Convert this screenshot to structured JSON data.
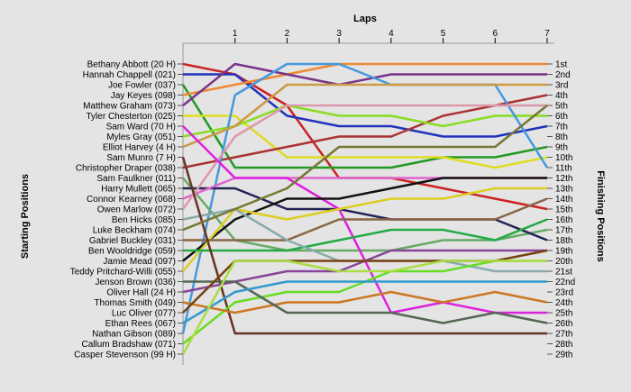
{
  "chart_data": {
    "type": "line",
    "title": "",
    "x_title": "Laps",
    "y_left_title": "Starting Positions",
    "y_right_title": "Finishing Positions",
    "x": [
      0,
      1,
      2,
      3,
      4,
      5,
      6,
      7
    ],
    "x_tick_labels": [
      "1",
      "2",
      "3",
      "4",
      "5",
      "6",
      "7"
    ],
    "xlim": [
      0,
      7
    ],
    "ylim": [
      1,
      29
    ],
    "y_inverted": true,
    "grid": false,
    "starting_positions": [
      "Bethany Abbott (20 H)",
      "Hannah Chappell (021)",
      "Joe Fowler (037)",
      "Jay Keyes (098)",
      "Matthew Graham (073)",
      "Tyler Chesterton (025)",
      "Sam Ward (70 H)",
      "Myles Gray (051)",
      "Elliot Harvey (4 H)",
      "Sam Munro (7 H)",
      "Christopher Draper (038)",
      "Sam Faulkner (011)",
      "Harry Mullett (065)",
      "Connor Kearney (068)",
      "Owen Marlow (072)",
      "Ben Hicks (085)",
      "Luke Beckham (074)",
      "Gabriel Buckley (031)",
      "Ben Wooldridge (059)",
      "Jamie Mead (097)",
      "Teddy Pritchard-Willi (055)",
      "Jenson Brown (036)",
      "Oliver Hall (24 H)",
      "Thomas Smith (049)",
      "Luc Oliver (077)",
      "Ethan Rees (067)",
      "Nathan Gibson (089)",
      "Callum Bradshaw (071)",
      "Casper Stevenson (99 H)"
    ],
    "finishing_positions": [
      "1st",
      "2nd",
      "3rd",
      "4th",
      "5th",
      "6th",
      "7th",
      "8th",
      "9th",
      "10th",
      "11th",
      "12th",
      "13th",
      "14th",
      "15th",
      "16th",
      "17th",
      "18th",
      "19th",
      "20th",
      "21st",
      "22nd",
      "23rd",
      "24th",
      "25th",
      "26th",
      "27th",
      "28th",
      "29th"
    ],
    "series": [
      {
        "color": "#cc2222",
        "values": [
          1,
          2,
          5,
          12,
          12,
          13,
          14,
          15
        ]
      },
      {
        "color": "#2233bb",
        "values": [
          2,
          2,
          6,
          7,
          7,
          8,
          8,
          7
        ]
      },
      {
        "color": "#229922",
        "values": [
          3,
          11,
          11,
          11,
          11,
          10,
          10,
          9
        ]
      },
      {
        "color": "#ee8833",
        "values": [
          4,
          3,
          2,
          1,
          1,
          1,
          1,
          1
        ]
      },
      {
        "color": "#773388",
        "values": [
          5,
          1,
          2,
          3,
          2,
          2,
          2,
          2
        ]
      },
      {
        "color": "#dddd22",
        "values": [
          6,
          6,
          10,
          10,
          10,
          10,
          11,
          10
        ]
      },
      {
        "color": "#aa3333",
        "values": [
          11,
          10,
          9,
          8,
          8,
          6,
          5,
          4
        ]
      },
      {
        "color": "#88dd22",
        "values": [
          8,
          7,
          5,
          6,
          6,
          7,
          6,
          6
        ]
      },
      {
        "color": "#4499dd",
        "values": [
          27,
          4,
          1,
          1,
          3,
          3,
          3,
          11
        ]
      },
      {
        "color": "#cc9944",
        "values": [
          9,
          7,
          3,
          3,
          3,
          3,
          3,
          3
        ]
      },
      {
        "color": "#66aa66",
        "values": [
          12,
          18,
          19,
          19,
          19,
          18,
          18,
          17
        ]
      },
      {
        "color": "#222255",
        "values": [
          13,
          13,
          15,
          15,
          16,
          16,
          16,
          18
        ]
      },
      {
        "color": "#dd66cc",
        "values": [
          14,
          12,
          12,
          12,
          12,
          12,
          12,
          12
        ]
      },
      {
        "color": "#dd99aa",
        "values": [
          15,
          8,
          5,
          5,
          5,
          5,
          5,
          5
        ]
      },
      {
        "color": "#dd22dd",
        "values": [
          7,
          12,
          12,
          15,
          25,
          24,
          25,
          25
        ]
      },
      {
        "color": "#111111",
        "values": [
          20,
          16,
          14,
          14,
          13,
          12,
          12,
          12
        ]
      },
      {
        "color": "#ddcc22",
        "values": [
          21,
          15,
          16,
          15,
          14,
          14,
          13,
          13
        ]
      },
      {
        "color": "#886644",
        "values": [
          18,
          18,
          18,
          16,
          16,
          16,
          16,
          14
        ]
      },
      {
        "color": "#22aa44",
        "values": [
          19,
          19,
          19,
          18,
          17,
          17,
          18,
          16
        ]
      },
      {
        "color": "#88aaaa",
        "values": [
          16,
          15,
          18,
          20,
          20,
          20,
          21,
          21
        ]
      },
      {
        "color": "#663322",
        "values": [
          10,
          27,
          27,
          27,
          27,
          27,
          27,
          27
        ]
      },
      {
        "color": "#777733",
        "values": [
          17,
          15,
          13,
          9,
          9,
          9,
          9,
          5
        ]
      },
      {
        "color": "#884499",
        "values": [
          23,
          22,
          21,
          21,
          19,
          19,
          19,
          19
        ]
      },
      {
        "color": "#66dd22",
        "values": [
          28,
          24,
          23,
          23,
          21,
          21,
          20,
          20
        ]
      },
      {
        "color": "#cc7722",
        "values": [
          24,
          25,
          24,
          24,
          23,
          24,
          23,
          24
        ]
      },
      {
        "color": "#556655",
        "values": [
          22,
          22,
          25,
          25,
          25,
          26,
          25,
          26
        ]
      },
      {
        "color": "#3399cc",
        "values": [
          26,
          23,
          22,
          22,
          22,
          22,
          22,
          22
        ]
      },
      {
        "color": "#774411",
        "values": [
          25,
          20,
          20,
          20,
          20,
          20,
          20,
          19
        ]
      },
      {
        "color": "#aadd44",
        "values": [
          29,
          20,
          20,
          21,
          21,
          20,
          20,
          20
        ]
      }
    ]
  }
}
